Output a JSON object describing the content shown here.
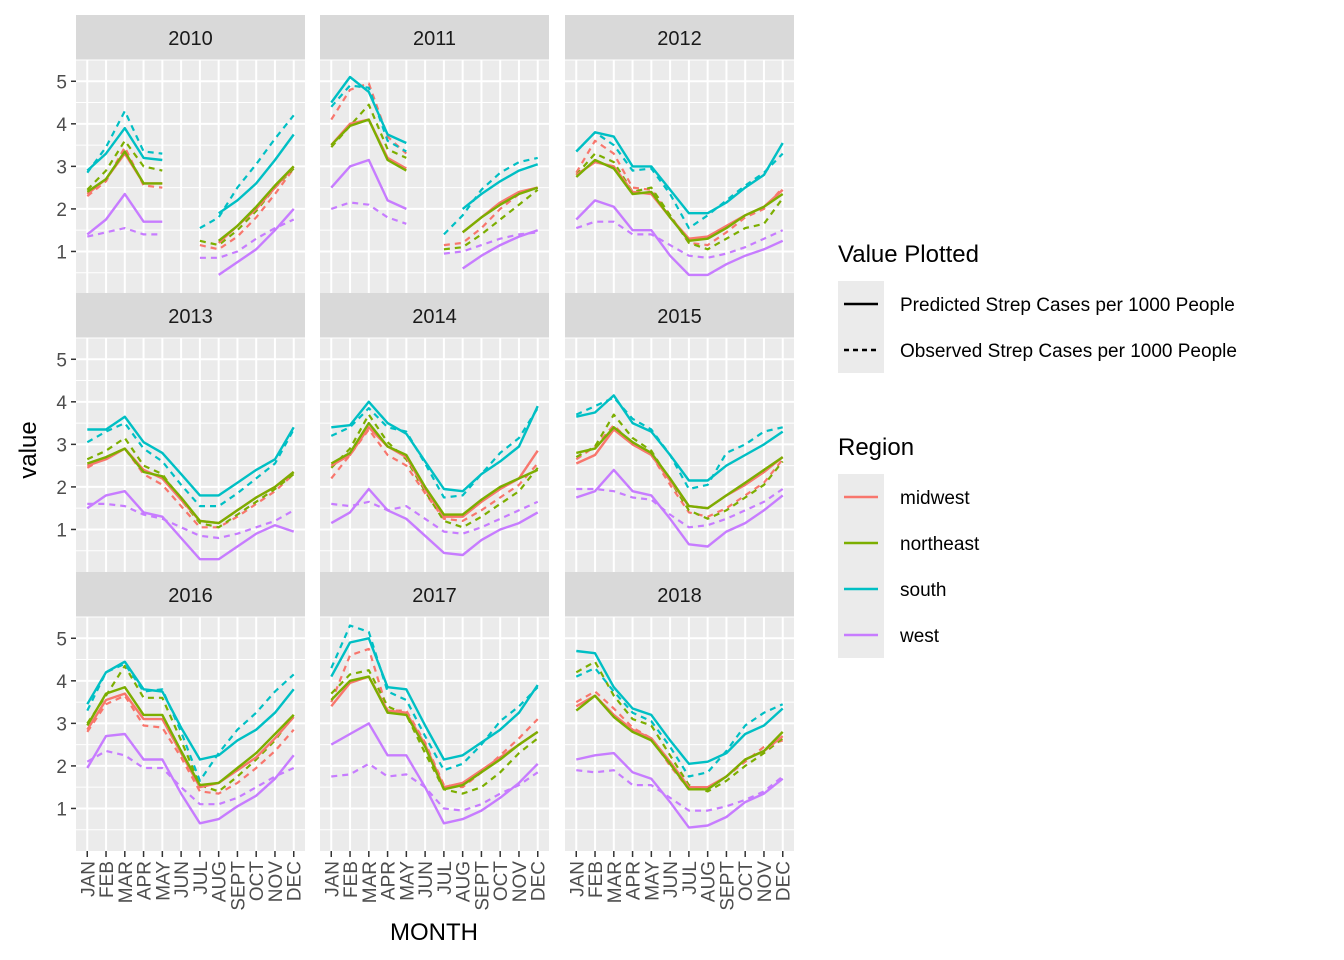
{
  "chart_data": {
    "type": "line",
    "facet_variable": "year",
    "facets": [
      "2010",
      "2011",
      "2012",
      "2013",
      "2014",
      "2015",
      "2016",
      "2017",
      "2018"
    ],
    "x_categories": [
      "JAN",
      "FEB",
      "MAR",
      "APR",
      "MAY",
      "JUN",
      "JUL",
      "AUG",
      "SEPT",
      "OCT",
      "NOV",
      "DEC"
    ],
    "xlabel": "MONTH",
    "ylabel": "value",
    "yticks": [
      1,
      2,
      3,
      4,
      5
    ],
    "ylim": [
      0,
      5.5
    ],
    "legend_value": {
      "title": "Value Plotted",
      "entries": [
        {
          "label": "Predicted Strep Cases per 1000 People",
          "linestyle": "solid"
        },
        {
          "label": "Observed Strep Cases per 1000 People",
          "linestyle": "dashed"
        }
      ]
    },
    "legend_region": {
      "title": "Region",
      "entries": [
        {
          "label": "midwest",
          "color": "#F8766D"
        },
        {
          "label": "northeast",
          "color": "#7CAE00"
        },
        {
          "label": "south",
          "color": "#00BFC4"
        },
        {
          "label": "west",
          "color": "#C77CFF"
        }
      ]
    },
    "regions": [
      "midwest",
      "northeast",
      "south",
      "west"
    ],
    "region_colors": {
      "midwest": "#F8766D",
      "northeast": "#7CAE00",
      "south": "#00BFC4",
      "west": "#C77CFF"
    },
    "series": {
      "2010": {
        "predicted": {
          "midwest": [
            2.35,
            2.7,
            3.3,
            2.6,
            2.6,
            null,
            null,
            1.2,
            1.6,
            2.0,
            2.5,
            3.0
          ],
          "northeast": [
            2.4,
            2.7,
            3.35,
            2.6,
            2.6,
            null,
            null,
            1.25,
            1.6,
            2.05,
            2.55,
            3.0
          ],
          "south": [
            2.9,
            3.3,
            3.9,
            3.2,
            3.15,
            null,
            null,
            1.9,
            2.2,
            2.6,
            3.15,
            3.75
          ],
          "west": [
            1.4,
            1.75,
            2.35,
            1.7,
            1.7,
            null,
            null,
            0.45,
            0.75,
            1.05,
            1.5,
            2.0
          ]
        },
        "observed": {
          "midwest": [
            2.3,
            2.65,
            3.45,
            2.55,
            2.5,
            null,
            1.15,
            1.05,
            1.35,
            1.8,
            2.35,
            2.95
          ],
          "northeast": [
            2.45,
            2.9,
            3.6,
            3.0,
            2.9,
            null,
            1.25,
            1.15,
            1.5,
            1.95,
            2.5,
            2.95
          ],
          "south": [
            2.85,
            3.45,
            4.3,
            3.35,
            3.3,
            null,
            1.55,
            1.8,
            2.5,
            3.05,
            3.65,
            4.2
          ],
          "west": [
            1.35,
            1.45,
            1.55,
            1.4,
            1.4,
            null,
            0.85,
            0.85,
            1.0,
            1.3,
            1.55,
            1.75
          ]
        }
      },
      "2011": {
        "predicted": {
          "midwest": [
            3.5,
            4.0,
            4.1,
            3.2,
            2.95,
            null,
            null,
            1.45,
            1.8,
            2.15,
            2.4,
            2.5
          ],
          "northeast": [
            3.5,
            3.95,
            4.1,
            3.15,
            2.9,
            null,
            null,
            1.45,
            1.8,
            2.1,
            2.35,
            2.5
          ],
          "south": [
            4.5,
            5.1,
            4.75,
            3.75,
            3.55,
            null,
            null,
            2.0,
            2.35,
            2.65,
            2.9,
            3.05
          ],
          "west": [
            2.5,
            3.0,
            3.15,
            2.2,
            2.0,
            null,
            null,
            0.6,
            0.9,
            1.15,
            1.35,
            1.5
          ]
        },
        "observed": {
          "midwest": [
            4.1,
            4.8,
            4.95,
            3.7,
            3.3,
            null,
            1.15,
            1.2,
            1.55,
            2.0,
            2.35,
            2.5
          ],
          "northeast": [
            3.45,
            3.95,
            4.45,
            3.4,
            3.2,
            null,
            1.05,
            1.1,
            1.4,
            1.75,
            2.1,
            2.45
          ],
          "south": [
            4.4,
            4.9,
            4.85,
            3.6,
            3.35,
            null,
            1.4,
            1.85,
            2.45,
            2.85,
            3.1,
            3.2
          ],
          "west": [
            2.0,
            2.15,
            2.1,
            1.8,
            1.65,
            null,
            0.95,
            1.0,
            1.15,
            1.3,
            1.4,
            1.45
          ]
        }
      },
      "2012": {
        "predicted": {
          "midwest": [
            2.8,
            3.1,
            3.0,
            2.4,
            2.35,
            1.8,
            1.3,
            1.35,
            1.6,
            1.85,
            2.05,
            2.45
          ],
          "northeast": [
            2.75,
            3.15,
            2.95,
            2.35,
            2.4,
            1.8,
            1.25,
            1.3,
            1.55,
            1.85,
            2.05,
            2.35
          ],
          "south": [
            3.35,
            3.8,
            3.7,
            3.0,
            3.0,
            2.45,
            1.9,
            1.9,
            2.15,
            2.5,
            2.8,
            3.55
          ],
          "west": [
            1.75,
            2.2,
            2.05,
            1.5,
            1.5,
            0.9,
            0.45,
            0.45,
            0.7,
            0.9,
            1.05,
            1.25
          ]
        },
        "observed": {
          "midwest": [
            2.85,
            3.6,
            3.3,
            2.5,
            2.45,
            1.85,
            1.2,
            1.15,
            1.45,
            1.8,
            2.0,
            2.5
          ],
          "northeast": [
            2.8,
            3.3,
            3.1,
            2.4,
            2.5,
            1.85,
            1.2,
            1.05,
            1.3,
            1.55,
            1.65,
            2.25
          ],
          "south": [
            3.35,
            3.8,
            3.5,
            2.9,
            2.95,
            2.35,
            1.55,
            1.85,
            2.2,
            2.55,
            2.85,
            3.3
          ],
          "west": [
            1.55,
            1.7,
            1.7,
            1.4,
            1.4,
            1.15,
            0.9,
            0.85,
            0.95,
            1.1,
            1.3,
            1.5
          ]
        }
      },
      "2013": {
        "predicted": {
          "midwest": [
            2.5,
            2.65,
            2.9,
            2.4,
            2.2,
            1.7,
            1.2,
            1.15,
            1.45,
            1.75,
            2.0,
            2.35
          ],
          "northeast": [
            2.55,
            2.7,
            2.9,
            2.35,
            2.25,
            1.75,
            1.2,
            1.15,
            1.45,
            1.75,
            2.0,
            2.35
          ],
          "south": [
            3.35,
            3.35,
            3.65,
            3.05,
            2.8,
            2.3,
            1.8,
            1.8,
            2.1,
            2.4,
            2.65,
            3.4
          ],
          "west": [
            1.5,
            1.8,
            1.9,
            1.4,
            1.3,
            0.8,
            0.3,
            0.3,
            0.6,
            0.9,
            1.1,
            0.95
          ]
        },
        "observed": {
          "midwest": [
            2.45,
            2.7,
            2.9,
            2.3,
            2.05,
            1.55,
            1.05,
            1.05,
            1.3,
            1.6,
            1.9,
            2.3
          ],
          "northeast": [
            2.65,
            2.85,
            3.15,
            2.5,
            2.3,
            1.7,
            1.15,
            1.05,
            1.35,
            1.65,
            1.95,
            2.3
          ],
          "south": [
            3.05,
            3.3,
            3.5,
            2.9,
            2.6,
            2.05,
            1.55,
            1.55,
            1.85,
            2.2,
            2.55,
            3.35
          ],
          "west": [
            1.6,
            1.6,
            1.55,
            1.35,
            1.25,
            1.05,
            0.85,
            0.8,
            0.9,
            1.05,
            1.2,
            1.45
          ]
        }
      },
      "2014": {
        "predicted": {
          "midwest": [
            2.5,
            2.75,
            3.4,
            2.95,
            2.7,
            1.95,
            1.3,
            1.3,
            1.65,
            1.95,
            2.2,
            2.85
          ],
          "northeast": [
            2.55,
            2.8,
            3.5,
            2.95,
            2.75,
            2.0,
            1.35,
            1.35,
            1.7,
            2.0,
            2.2,
            2.4
          ],
          "south": [
            3.4,
            3.45,
            4.0,
            3.5,
            3.25,
            2.6,
            1.95,
            1.9,
            2.3,
            2.6,
            2.95,
            3.9
          ],
          "west": [
            1.15,
            1.4,
            1.95,
            1.45,
            1.25,
            0.85,
            0.45,
            0.4,
            0.75,
            1.0,
            1.15,
            1.4
          ]
        },
        "observed": {
          "midwest": [
            2.2,
            2.75,
            3.35,
            2.75,
            2.5,
            1.85,
            1.25,
            1.2,
            1.45,
            1.75,
            2.05,
            2.55
          ],
          "northeast": [
            2.45,
            2.9,
            3.7,
            3.05,
            2.65,
            1.9,
            1.2,
            1.05,
            1.3,
            1.6,
            1.9,
            2.45
          ],
          "south": [
            3.2,
            3.4,
            3.85,
            3.4,
            3.3,
            2.55,
            1.75,
            1.8,
            2.3,
            2.8,
            3.15,
            3.85
          ],
          "west": [
            1.6,
            1.55,
            1.65,
            1.45,
            1.55,
            1.25,
            0.95,
            0.9,
            1.05,
            1.25,
            1.45,
            1.65
          ]
        }
      },
      "2015": {
        "predicted": {
          "midwest": [
            2.55,
            2.75,
            3.35,
            3.0,
            2.75,
            2.15,
            1.55,
            1.5,
            1.8,
            2.05,
            2.35,
            2.7
          ],
          "northeast": [
            2.8,
            2.9,
            3.4,
            3.05,
            2.8,
            2.2,
            1.55,
            1.5,
            1.8,
            2.1,
            2.4,
            2.7
          ],
          "south": [
            3.65,
            3.75,
            4.15,
            3.5,
            3.3,
            2.75,
            2.15,
            2.15,
            2.5,
            2.75,
            3.0,
            3.3
          ],
          "west": [
            1.75,
            1.9,
            2.4,
            1.9,
            1.8,
            1.25,
            0.65,
            0.6,
            0.95,
            1.15,
            1.45,
            1.8
          ]
        },
        "observed": {
          "midwest": [
            2.65,
            2.95,
            3.45,
            3.0,
            2.75,
            2.05,
            1.4,
            1.3,
            1.5,
            1.8,
            2.1,
            2.65
          ],
          "northeast": [
            2.7,
            2.95,
            3.7,
            3.15,
            2.85,
            2.15,
            1.45,
            1.25,
            1.45,
            1.75,
            2.05,
            2.6
          ],
          "south": [
            3.7,
            3.9,
            4.1,
            3.6,
            3.35,
            2.75,
            1.95,
            2.05,
            2.8,
            3.0,
            3.3,
            3.4
          ],
          "west": [
            1.95,
            1.95,
            1.9,
            1.75,
            1.7,
            1.35,
            1.05,
            1.1,
            1.25,
            1.45,
            1.65,
            1.95
          ]
        }
      },
      "2016": {
        "predicted": {
          "midwest": [
            2.85,
            3.55,
            3.7,
            3.1,
            3.1,
            2.3,
            1.5,
            1.6,
            1.9,
            2.2,
            2.65,
            3.15
          ],
          "northeast": [
            2.95,
            3.7,
            3.85,
            3.2,
            3.2,
            2.35,
            1.55,
            1.6,
            1.95,
            2.3,
            2.75,
            3.2
          ],
          "south": [
            3.45,
            4.2,
            4.45,
            3.8,
            3.75,
            2.9,
            2.15,
            2.25,
            2.6,
            2.85,
            3.25,
            3.8
          ],
          "west": [
            1.95,
            2.7,
            2.75,
            2.15,
            2.15,
            1.35,
            0.65,
            0.75,
            1.05,
            1.3,
            1.7,
            2.25
          ]
        },
        "observed": {
          "midwest": [
            2.8,
            3.45,
            3.65,
            2.95,
            2.9,
            2.2,
            1.4,
            1.35,
            1.6,
            1.95,
            2.35,
            2.85
          ],
          "northeast": [
            3.0,
            3.65,
            4.35,
            3.6,
            3.6,
            2.6,
            1.55,
            1.4,
            1.75,
            2.15,
            2.6,
            3.2
          ],
          "south": [
            3.3,
            4.2,
            4.4,
            3.75,
            3.8,
            2.8,
            1.65,
            2.3,
            2.85,
            3.25,
            3.75,
            4.15
          ],
          "west": [
            2.1,
            2.35,
            2.25,
            1.95,
            1.95,
            1.5,
            1.1,
            1.1,
            1.25,
            1.5,
            1.75,
            1.95
          ]
        }
      },
      "2017": {
        "predicted": {
          "midwest": [
            3.4,
            3.95,
            4.1,
            3.3,
            3.25,
            2.5,
            1.5,
            1.6,
            1.9,
            2.2,
            2.5,
            2.8
          ],
          "northeast": [
            3.55,
            4.0,
            4.1,
            3.25,
            3.2,
            2.45,
            1.45,
            1.55,
            1.85,
            2.15,
            2.5,
            2.8
          ],
          "south": [
            4.1,
            4.9,
            5.0,
            3.85,
            3.8,
            2.95,
            2.15,
            2.25,
            2.55,
            2.85,
            3.25,
            3.9
          ],
          "west": [
            2.5,
            2.75,
            3.0,
            2.25,
            2.25,
            1.5,
            0.65,
            0.75,
            0.95,
            1.25,
            1.6,
            2.05
          ]
        },
        "observed": {
          "midwest": [
            3.5,
            4.6,
            4.75,
            3.3,
            3.3,
            2.55,
            1.55,
            1.5,
            1.85,
            2.25,
            2.65,
            3.1
          ],
          "northeast": [
            3.7,
            4.15,
            4.25,
            3.4,
            3.2,
            2.3,
            1.45,
            1.35,
            1.5,
            1.85,
            2.3,
            2.65
          ],
          "south": [
            4.3,
            5.3,
            5.15,
            3.75,
            3.55,
            2.7,
            1.9,
            2.05,
            2.5,
            3.05,
            3.4,
            3.85
          ],
          "west": [
            1.75,
            1.8,
            2.05,
            1.75,
            1.8,
            1.5,
            1.0,
            0.95,
            1.1,
            1.35,
            1.55,
            1.85
          ]
        }
      },
      "2018": {
        "predicted": {
          "midwest": [
            3.4,
            3.65,
            3.2,
            2.85,
            2.65,
            2.1,
            1.5,
            1.5,
            1.75,
            2.15,
            2.35,
            2.7
          ],
          "northeast": [
            3.3,
            3.65,
            3.15,
            2.8,
            2.6,
            2.05,
            1.45,
            1.45,
            1.75,
            2.15,
            2.35,
            2.8
          ],
          "south": [
            4.7,
            4.65,
            3.85,
            3.35,
            3.2,
            2.6,
            2.05,
            2.1,
            2.3,
            2.75,
            2.95,
            3.35
          ],
          "west": [
            2.15,
            2.25,
            2.3,
            1.85,
            1.7,
            1.15,
            0.55,
            0.6,
            0.8,
            1.15,
            1.35,
            1.7
          ]
        },
        "observed": {
          "midwest": [
            3.5,
            3.75,
            3.35,
            2.9,
            2.65,
            2.0,
            1.45,
            1.45,
            1.75,
            2.1,
            2.45,
            2.6
          ],
          "northeast": [
            4.2,
            4.45,
            3.65,
            3.1,
            2.95,
            2.25,
            1.55,
            1.4,
            1.65,
            2.0,
            2.3,
            2.65
          ],
          "south": [
            4.1,
            4.3,
            3.75,
            3.25,
            3.05,
            2.45,
            1.75,
            1.85,
            2.35,
            2.95,
            3.25,
            3.45
          ],
          "west": [
            1.9,
            1.85,
            1.9,
            1.55,
            1.55,
            1.25,
            0.95,
            0.95,
            1.05,
            1.2,
            1.4,
            1.75
          ]
        }
      }
    }
  }
}
